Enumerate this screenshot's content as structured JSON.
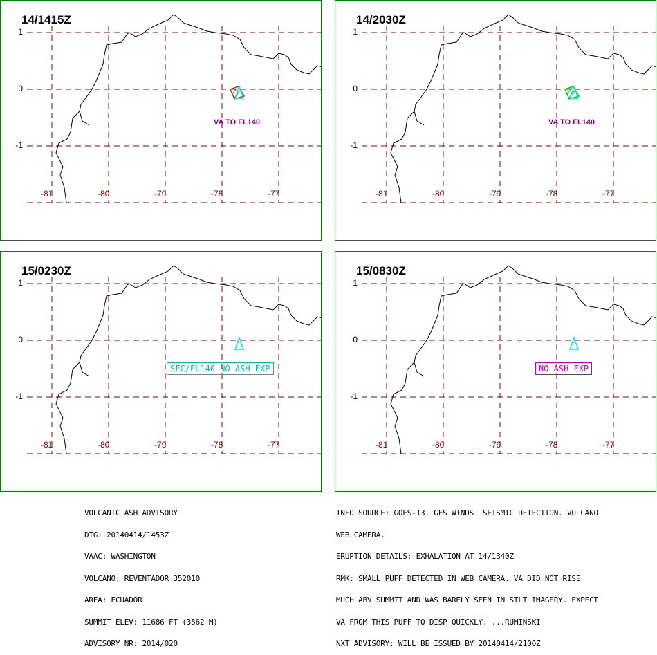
{
  "panels": [
    {
      "time": "14/1415Z",
      "y_labels": [
        "1",
        "0",
        "-1"
      ],
      "x_labels": [
        "-81",
        "-80",
        "-79",
        "-78",
        "-77"
      ],
      "ash_label": "VA TO FL140",
      "ash_label_color": "#800080",
      "ash_label_boxed": false,
      "polygon_color": "#8b4513"
    },
    {
      "time": "14/2030Z",
      "y_labels": [
        "1",
        "0",
        "-1"
      ],
      "x_labels": [
        "-81",
        "-80",
        "-79",
        "-78",
        "-77"
      ],
      "ash_label": "VA TO FL140",
      "ash_label_color": "#800080",
      "ash_label_boxed": false,
      "polygon_color": "#00cc00"
    },
    {
      "time": "15/0230Z",
      "y_labels": [
        "1",
        "0",
        "-1"
      ],
      "x_labels": [
        "-81",
        "-80",
        "-79",
        "-78",
        "-77"
      ],
      "ash_label": "SFC/FL140 NO ASH EXP",
      "ash_label_color": "#00b8b8",
      "ash_label_boxed": true,
      "polygon_color": ""
    },
    {
      "time": "15/0830Z",
      "y_labels": [
        "1",
        "0",
        "-1"
      ],
      "x_labels": [
        "-81",
        "-80",
        "-79",
        "-78",
        "-77"
      ],
      "ash_label": "NO ASH EXP",
      "ash_label_color": "#c000c0",
      "ash_label_boxed": true,
      "polygon_color": ""
    }
  ],
  "colors": {
    "frame": "#008000",
    "grid": "#800000",
    "volcano": "#00e5ee",
    "coast": "#000000"
  },
  "volcano_icon": "volcano-triangle-icon",
  "advisory_left": [
    "VOLCANIC ASH ADVISORY",
    "DTG: 20140414/1453Z",
    "VAAC: WASHINGTON",
    "VOLCANO: REVENTADOR 352010",
    "AREA: ECUADOR",
    "SUMMIT ELEV: 11686 FT (3562 M)",
    "ADVISORY NR: 2014/020"
  ],
  "advisory_right": [
    "INFO SOURCE: GOES-13. GFS WINDS. SEISMIC DETECTION. VOLCANO",
    "WEB CAMERA.",
    "ERUPTION DETAILS: EXHALATION AT 14/1340Z",
    "RMK: SMALL PUFF DETECTED IN WEB CAMERA. VA DID NOT RISE",
    "MUCH ABV SUMMIT AND WAS BARELY SEEN IN STLT IMAGERY. EXPECT",
    "VA FROM THIS PUFF TO DISP QUICKLY. ...RUMINSKI",
    "NXT ADVISORY: WILL BE ISSUED BY 20140414/2100Z"
  ]
}
